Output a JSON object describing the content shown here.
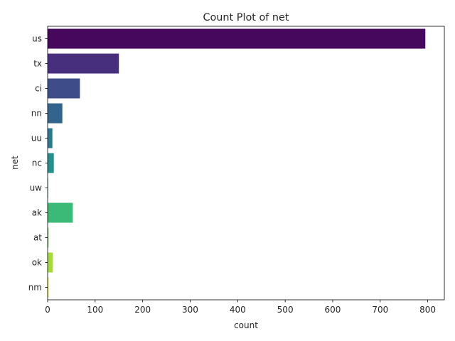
{
  "chart_data": {
    "type": "bar",
    "orientation": "horizontal",
    "title": "Count Plot of net",
    "xlabel": "count",
    "ylabel": "net",
    "categories": [
      "us",
      "tx",
      "ci",
      "nn",
      "uu",
      "nc",
      "uw",
      "ak",
      "at",
      "ok",
      "nm"
    ],
    "values": [
      795,
      150,
      68,
      31,
      10,
      13,
      1,
      53,
      2,
      11,
      2
    ],
    "colors": [
      "#46085c",
      "#472f7d",
      "#3e4c8a",
      "#32648e",
      "#297a8e",
      "#21918c",
      "#22a884",
      "#3aba76",
      "#6ccd5a",
      "#a5db36",
      "#e2e418"
    ],
    "xlim": [
      0,
      835
    ],
    "xticks": [
      0,
      100,
      200,
      300,
      400,
      500,
      600,
      700,
      800
    ],
    "grid": false,
    "legend": "none"
  }
}
